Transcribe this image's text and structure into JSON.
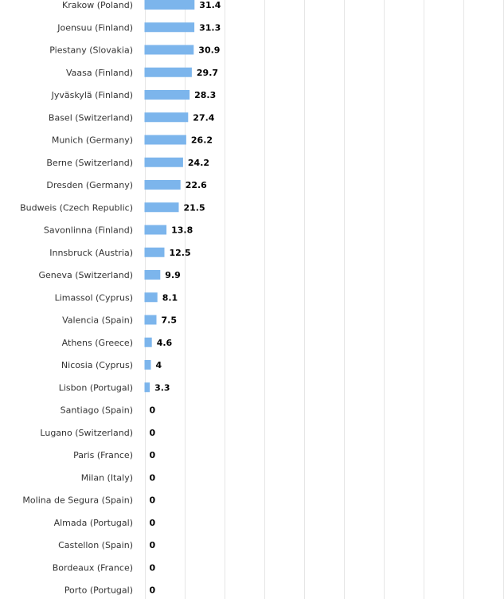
{
  "chart_data": {
    "type": "bar",
    "orientation": "horizontal",
    "categories": [
      "Krakow (Poland)",
      "Joensuu (Finland)",
      "Piestany (Slovakia)",
      "Vaasa (Finland)",
      "Jyväskylä (Finland)",
      "Basel (Switzerland)",
      "Munich (Germany)",
      "Berne (Switzerland)",
      "Dresden (Germany)",
      "Budweis (Czech Republic)",
      "Savonlinna (Finland)",
      "Innsbruck (Austria)",
      "Geneva (Switzerland)",
      "Limassol (Cyprus)",
      "Valencia (Spain)",
      "Athens (Greece)",
      "Nicosia (Cyprus)",
      "Lisbon (Portugal)",
      "Santiago (Spain)",
      "Lugano (Switzerland)",
      "Paris (France)",
      "Milan (Italy)",
      "Molina de Segura (Spain)",
      "Almada (Portugal)",
      "Castellon (Spain)",
      "Bordeaux (France)",
      "Porto (Portugal)"
    ],
    "values": [
      31.4,
      31.3,
      30.9,
      29.7,
      28.3,
      27.4,
      26.2,
      24.2,
      22.6,
      21.5,
      13.8,
      12.5,
      9.9,
      8.1,
      7.5,
      4.6,
      4,
      3.3,
      0,
      0,
      0,
      0,
      0,
      0,
      0,
      0,
      0
    ],
    "value_labels": [
      "31.4",
      "31.3",
      "30.9",
      "29.7",
      "28.3",
      "27.4",
      "26.2",
      "24.2",
      "22.6",
      "21.5",
      "13.8",
      "12.5",
      "9.9",
      "8.1",
      "7.5",
      "4.6",
      "4",
      "3.3",
      "0",
      "0",
      "0",
      "0",
      "0",
      "0",
      "0",
      "0",
      "0"
    ],
    "xlim": [
      0,
      225
    ],
    "grid_step": 25,
    "grid": true,
    "colors": {
      "bar": "#7cb5ec",
      "grid": "#e6e6e6",
      "label": "#333333",
      "value": "#000000"
    }
  }
}
